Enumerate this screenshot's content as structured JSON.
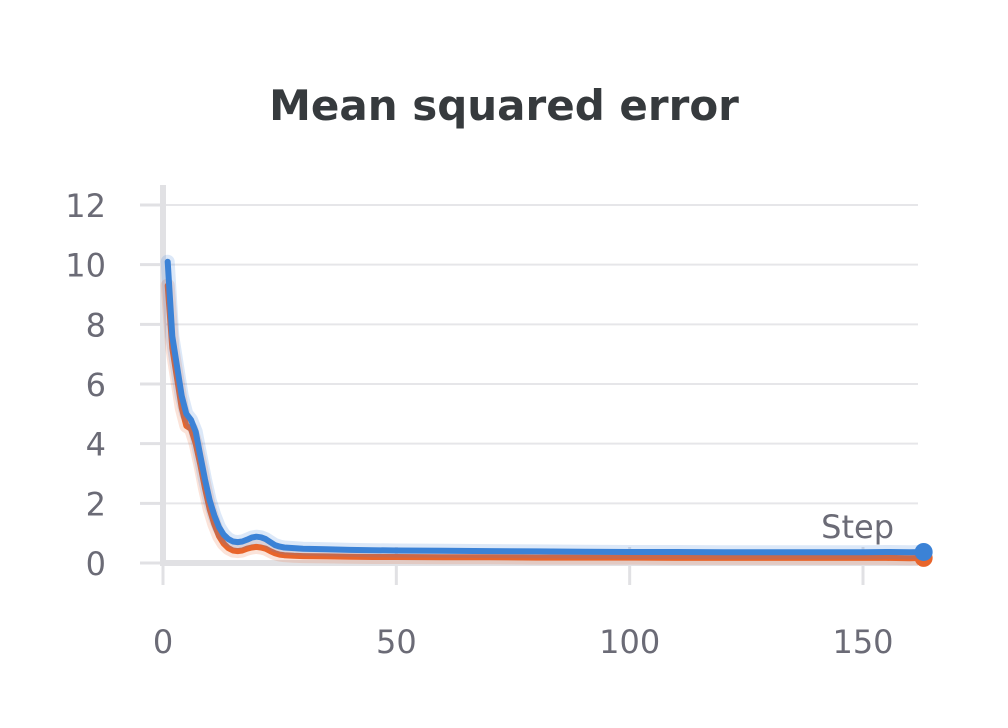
{
  "chart_data": {
    "type": "line",
    "title": "Mean squared error",
    "xlabel": "Step",
    "ylabel": "",
    "xlim": [
      0,
      163
    ],
    "ylim": [
      0,
      12.7
    ],
    "x_ticks": [
      0,
      50,
      100,
      150
    ],
    "y_ticks": [
      0,
      2,
      4,
      6,
      8,
      10,
      12
    ],
    "grid": true,
    "legend": "none",
    "series": [
      {
        "color": "#3b82d6",
        "x": [
          1,
          2,
          3,
          4,
          5,
          6,
          7,
          8,
          9,
          10,
          11,
          12,
          13,
          14,
          15,
          16,
          17,
          18,
          19,
          20,
          21,
          22,
          23,
          24,
          25,
          26,
          28,
          30,
          35,
          40,
          45,
          50,
          60,
          70,
          80,
          90,
          100,
          110,
          120,
          130,
          140,
          150,
          155,
          160,
          163
        ],
        "y": [
          10.1,
          7.6,
          6.6,
          5.6,
          5.0,
          4.8,
          4.4,
          3.6,
          2.8,
          2.1,
          1.6,
          1.2,
          0.95,
          0.8,
          0.72,
          0.7,
          0.72,
          0.78,
          0.85,
          0.88,
          0.86,
          0.8,
          0.7,
          0.6,
          0.55,
          0.52,
          0.5,
          0.48,
          0.46,
          0.44,
          0.43,
          0.42,
          0.41,
          0.4,
          0.39,
          0.38,
          0.37,
          0.37,
          0.36,
          0.36,
          0.36,
          0.36,
          0.37,
          0.36,
          0.37
        ]
      },
      {
        "color": "#e8652b",
        "x": [
          1,
          2,
          3,
          4,
          5,
          6,
          7,
          8,
          9,
          10,
          11,
          12,
          13,
          14,
          15,
          16,
          17,
          18,
          19,
          20,
          21,
          22,
          23,
          24,
          25,
          26,
          28,
          30,
          35,
          40,
          45,
          50,
          60,
          70,
          80,
          90,
          100,
          110,
          120,
          130,
          140,
          150,
          155,
          160,
          163
        ],
        "y": [
          9.3,
          7.2,
          6.2,
          5.2,
          4.6,
          4.5,
          4.0,
          3.3,
          2.5,
          1.8,
          1.3,
          0.9,
          0.65,
          0.5,
          0.42,
          0.4,
          0.42,
          0.48,
          0.52,
          0.54,
          0.52,
          0.48,
          0.4,
          0.33,
          0.28,
          0.26,
          0.24,
          0.23,
          0.22,
          0.21,
          0.2,
          0.2,
          0.19,
          0.19,
          0.18,
          0.18,
          0.18,
          0.17,
          0.17,
          0.17,
          0.17,
          0.17,
          0.17,
          0.16,
          0.17
        ]
      }
    ]
  }
}
